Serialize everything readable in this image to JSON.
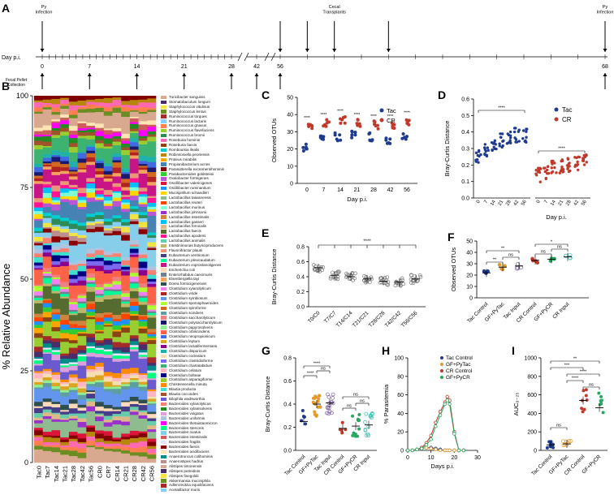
{
  "panels": {
    "A": "A",
    "B": "B",
    "C": "C",
    "D": "D",
    "E": "E",
    "F": "F",
    "G": "G",
    "H": "H",
    "I": "I"
  },
  "timeline": {
    "axis_label": "Day p.i.",
    "ticks": [
      "0",
      "7",
      "14",
      "21",
      "28",
      "42",
      "56",
      "68"
    ],
    "top_events": [
      {
        "label": "Py\nInfection",
        "at": "0"
      },
      {
        "label": "Cecal\nTransplants",
        "at": "56"
      },
      {
        "label": "Py\nInfection",
        "at": "68"
      }
    ],
    "bottom_label": "Fecal Pellet\nCollection"
  },
  "panelB": {
    "ylabel": "% Relative Abundance",
    "yticks": [
      "0",
      "25",
      "50",
      "75",
      "100"
    ],
    "samples": [
      "Tac0",
      "Tac7",
      "Tac14",
      "Tac21",
      "Tac28",
      "Tac42",
      "Tac56",
      "CR0",
      "CR7",
      "CR14",
      "CR21",
      "CR28",
      "CR42",
      "CR56"
    ],
    "taxa": [
      "Turicibacter sanguinis",
      "Stomatobaculum longum",
      "Staphylococcus vitulinus",
      "Staphylococcus lentus",
      "Ruminococcus torques",
      "Ruminococcus lactaris",
      "Ruminococcus gnavus",
      "Ruminococcus flavefaciens",
      "Ruminococcus bromii",
      "Roseburia hominis",
      "Roseburia faecis",
      "Romboutsia ilealis",
      "Robinsoniella peoriensis",
      "Proteus mirabilis",
      "Propionibacterium acnes",
      "Parasutterella excrementihominis",
      "Parabacteroides goldsteinii",
      "Oxalobacter formigenes",
      "Oscillibacter valericigenes",
      "Oscillibacter ruminantium",
      "Mucispirillum schaedleri",
      "Lactobacillus taiwanensis",
      "Lactobacillus reuteri",
      "Lactobacillus murinus",
      "Lactobacillus johnsonii",
      "Lactobacillus intestinalis",
      "Lactobacillus gasseri",
      "Lactobacillus fornicalis",
      "Lactobacillus faecis",
      "Lactobacillus apodemi",
      "Lactobacillus animalis",
      "Intestinimonas butyriciproducens",
      "Flavonifractor plautii",
      "Eubacterium ventriosum",
      "Eubacterium plexicaudatum",
      "Eubacterium coprostanoligenes",
      "Escherichia coli",
      "Enterorhabdus caecimuris",
      "Eisenbergiella tayi",
      "Dorea formicigenerans",
      "Clostridium xylanolyticum",
      "Clostridium viride",
      "Clostridium symbiosum",
      "Clostridium sporosphaeroides",
      "Clostridium spiroforme",
      "Clostridium scindens",
      "Clostridium saccharolyticum",
      "Clostridium polysaccharolyticum",
      "Clostridium papyrosolvens",
      "Clostridium orbiscindens",
      "Clostridium neopropionicum",
      "Clostridium leptum",
      "Clostridium lactatifermentans",
      "Clostridium disporicum",
      "Clostridium cocleatum",
      "Clostridium clostridioforme",
      "Clostridium chartatabidum",
      "Clostridium celatum",
      "Clostridium bolteae",
      "Clostridium asparagiforme",
      "Christensenella minuta",
      "Blautia producta",
      "Blautia coccoides",
      "Bilophila wadsworthia",
      "Bacteroides xylanolyticus",
      "Bacteroides xylanisolvens",
      "Bacteroides vulgatus",
      "Bacteroides uniformis",
      "Bacteroides thetaiotaomicron",
      "Bacteroides stercoris",
      "Bacteroides ovatus",
      "Bacteroides intestinalis",
      "Bacteroides fragilis",
      "Bacteroides faecis",
      "Bacteroides acidifaciens",
      "Anaerotruncus colihominis",
      "Anaerostipes hadrus",
      "Alistipes timonensis",
      "Alistipes putredinis",
      "Alistipes finegoldii",
      "Akkermansia muciniphila",
      "Adlercreutzia equolifaciens",
      "Acetatifactor muris"
    ]
  },
  "panelC": {
    "ylabel": "Observed OTUs",
    "xlabel": "Day p.i.",
    "yticks": [
      "0",
      "10",
      "20",
      "30",
      "40",
      "50"
    ],
    "legend": [
      "Tac",
      "CR"
    ]
  },
  "panelD": {
    "ylabel": "Bray-Curtis Distance",
    "xlabel": "Day p.i.",
    "yticks": [
      "0.0",
      "0.1",
      "0.2",
      "0.3",
      "0.4",
      "0.5",
      "0.6"
    ],
    "legend": [
      "Tac",
      "CR"
    ]
  },
  "panelE": {
    "ylabel": "Bray-Curtis Distance",
    "yticks": [
      "0.0",
      "0.2",
      "0.4",
      "0.6",
      "0.8"
    ],
    "categories": [
      "T0/C0",
      "T7/C7",
      "T14/C14",
      "T21/C21",
      "T28/C28",
      "T42/C42",
      "T56/C56"
    ],
    "sig": "****"
  },
  "panelF": {
    "ylabel": "Observed OTUs",
    "yticks": [
      "0",
      "10",
      "20",
      "30",
      "40",
      "50"
    ],
    "categories": [
      "Tac Control",
      "GF+PyTac",
      "Tac Input",
      "CR Control",
      "GF+PyCR",
      "CR Input"
    ]
  },
  "panelG": {
    "ylabel": "Bray-Curtis Distance",
    "yticks": [
      "0.0",
      "0.2",
      "0.4",
      "0.6",
      "0.8"
    ],
    "categories": [
      "Tac Control",
      "GF+PyTac",
      "Tac Input",
      "CR Control",
      "GF+PyCR",
      "CR Input"
    ]
  },
  "panelH": {
    "ylabel": "% Parasitemia",
    "xlabel": "Days p.i.",
    "yticks": [
      "0",
      "20",
      "40",
      "60",
      "80",
      "100"
    ],
    "xticks": [
      "0",
      "10",
      "20",
      "30"
    ],
    "legend": [
      "Tac Control",
      "GF+PyTac",
      "CR Control",
      "GF+PyCR"
    ]
  },
  "panelI": {
    "ylabel": "AUC₀₋₂₅",
    "yticks": [
      "0",
      "200",
      "400",
      "600",
      "800",
      "1000"
    ],
    "categories": [
      "Tac Control",
      "GF+PyTac",
      "CR Control",
      "GF+PyCR"
    ]
  },
  "colors": {
    "tac": "#1f3b8f",
    "cr": "#c0392b",
    "tac_input": "#7b5aa6",
    "gfpytac": "#e29a2d",
    "gfpycr": "#27a860",
    "cr_input": "#33bfb0",
    "cr_control": "#c0392b"
  },
  "chart_data": [
    {
      "id": "C",
      "type": "scatter",
      "x": [
        "0",
        "7",
        "14",
        "21",
        "28",
        "42",
        "56"
      ],
      "series": [
        {
          "name": "Tac",
          "values": [
            21,
            27,
            27,
            28,
            27,
            25,
            28
          ]
        },
        {
          "name": "CR",
          "values": [
            33,
            35,
            37,
            35,
            34,
            34,
            36
          ]
        }
      ],
      "xlabel": "Day p.i.",
      "ylabel": "Observed OTUs",
      "ylim": [
        0,
        50
      ]
    },
    {
      "id": "D",
      "type": "scatter",
      "x": [
        "0",
        "7",
        "14",
        "21",
        "28",
        "42",
        "56"
      ],
      "series": [
        {
          "name": "Tac",
          "values": [
            0.25,
            0.29,
            0.32,
            0.35,
            0.37,
            0.38,
            0.38
          ]
        },
        {
          "name": "CR",
          "values": [
            0.14,
            0.16,
            0.18,
            0.19,
            0.2,
            0.21,
            0.22
          ]
        }
      ],
      "xlabel": "Day p.i.",
      "ylabel": "Bray-Curtis Distance",
      "ylim": [
        0,
        0.6
      ]
    },
    {
      "id": "E",
      "type": "scatter",
      "categories": [
        "T0/C0",
        "T7/C7",
        "T14/C14",
        "T21/C21",
        "T28/C28",
        "T42/C42",
        "T56/C56"
      ],
      "values": [
        0.52,
        0.42,
        0.4,
        0.37,
        0.34,
        0.33,
        0.37
      ],
      "ylabel": "Bray-Curtis Distance",
      "ylim": [
        0,
        0.8
      ]
    },
    {
      "id": "F",
      "type": "scatter",
      "categories": [
        "Tac Control",
        "GF+PyTac",
        "Tac Input",
        "CR Control",
        "GF+PyCR",
        "CR Input"
      ],
      "values": [
        22,
        27,
        28,
        33,
        34,
        36
      ],
      "ylabel": "Observed OTUs",
      "ylim": [
        0,
        50
      ]
    },
    {
      "id": "G",
      "type": "scatter",
      "categories": [
        "Tac Control",
        "GF+PyTac",
        "Tac Input",
        "CR Control",
        "GF+PyCR",
        "CR Input"
      ],
      "values": [
        0.25,
        0.4,
        0.41,
        0.19,
        0.21,
        0.22
      ],
      "ylabel": "Bray-Curtis Distance",
      "ylim": [
        0,
        0.8
      ]
    },
    {
      "id": "H",
      "type": "line",
      "x": [
        0,
        2,
        4,
        6,
        8,
        10,
        12,
        14,
        16,
        17,
        18,
        20,
        22,
        24
      ],
      "series": [
        {
          "name": "Tac Control",
          "values": [
            0,
            0,
            1,
            2,
            3,
            3,
            2,
            1,
            0,
            0,
            0,
            0,
            0,
            0
          ]
        },
        {
          "name": "GF+PyTac",
          "values": [
            0,
            0,
            1,
            2,
            3,
            2,
            1,
            0,
            0,
            0,
            0,
            0,
            0,
            0
          ]
        },
        {
          "name": "CR Control",
          "values": [
            0,
            0,
            1,
            3,
            8,
            16,
            30,
            42,
            52,
            58,
            54,
            20,
            0,
            0
          ]
        },
        {
          "name": "GF+PyCR",
          "values": [
            0,
            0,
            1,
            2,
            6,
            12,
            26,
            38,
            50,
            54,
            50,
            18,
            0,
            0
          ]
        }
      ],
      "xlabel": "Days p.i.",
      "ylabel": "% Parasitemia",
      "ylim": [
        0,
        100
      ],
      "xlim": [
        0,
        30
      ]
    },
    {
      "id": "I",
      "type": "scatter",
      "categories": [
        "Tac Control",
        "GF+PyTac",
        "CR Control",
        "GF+PyCR"
      ],
      "values": [
        60,
        70,
        540,
        460
      ],
      "ylim": [
        0,
        1000
      ]
    }
  ]
}
